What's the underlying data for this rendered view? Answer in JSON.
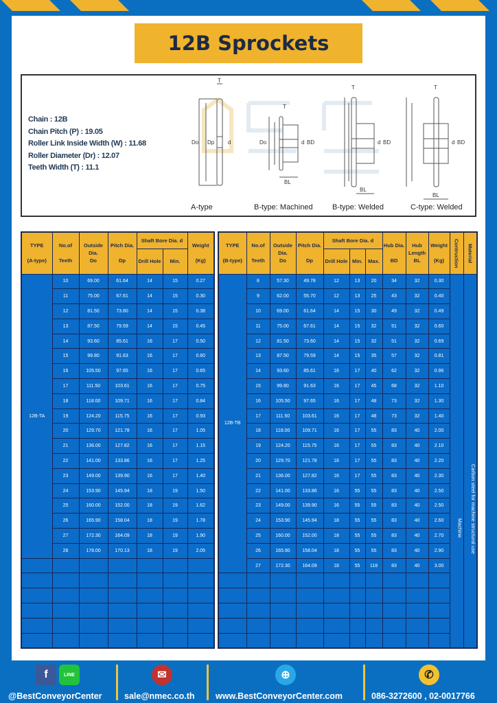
{
  "title": "12B Sprockets",
  "specs": [
    "Chain  :  12B",
    "Chain Pitch (P)  :  19.05",
    "Roller Link Inside Width (W) : 11.68",
    "Roller Diameter (Dr)  : 12.07",
    "Teeth Width (T)  :  11.1"
  ],
  "diagram": {
    "captions": [
      "A-type",
      "B-type: Machined",
      "B-type: Welded",
      "C-type: Welded"
    ],
    "labels": {
      "T": "T",
      "Do": "Do",
      "Dp": "Dp",
      "d": "d",
      "BD": "BD",
      "BL": "BL"
    },
    "watermark": "BEST CONVEYOR CENTER"
  },
  "table_a": {
    "headers": {
      "type": "TYPE",
      "type_sub": "(A-type)",
      "teeth": "No.of",
      "teeth_sub": "Teeth",
      "od": "Outside",
      "od_sub": "Dia.",
      "od_sub2": "Do",
      "pd": "Pitch Dia.",
      "pd_sub": "Dp",
      "bore": "Shaft Bore Dia. d",
      "drill": "Drill Hole",
      "min": "Min.",
      "wt": "Weight",
      "wt_sub": "(Kg)"
    },
    "type_value": "12B-TA",
    "rows": [
      [
        "10",
        "69.00",
        "61.64",
        "14",
        "15",
        "0.27"
      ],
      [
        "11",
        "75.00",
        "67.61",
        "14",
        "15",
        "0.30"
      ],
      [
        "12",
        "81.50",
        "73.60",
        "14",
        "15",
        "0.38"
      ],
      [
        "13",
        "87.50",
        "79.59",
        "14",
        "15",
        "0.45"
      ],
      [
        "14",
        "93.60",
        "85.61",
        "16",
        "17",
        "0.50"
      ],
      [
        "15",
        "99.80",
        "91.63",
        "16",
        "17",
        "0.60"
      ],
      [
        "16",
        "105.50",
        "97.65",
        "16",
        "17",
        "0.65"
      ],
      [
        "17",
        "111.50",
        "103.61",
        "16",
        "17",
        "0.75"
      ],
      [
        "18",
        "118.00",
        "109.71",
        "16",
        "17",
        "0.84"
      ],
      [
        "19",
        "124.20",
        "115.75",
        "16",
        "17",
        "0.93"
      ],
      [
        "20",
        "129.70",
        "121.78",
        "16",
        "17",
        "1.05"
      ],
      [
        "21",
        "136.00",
        "127.82",
        "16",
        "17",
        "1.15"
      ],
      [
        "22",
        "141.00",
        "133.86",
        "16",
        "17",
        "1.25"
      ],
      [
        "23",
        "149.00",
        "139.90",
        "16",
        "17",
        "1.40"
      ],
      [
        "24",
        "153.90",
        "145.94",
        "18",
        "19",
        "1.50"
      ],
      [
        "25",
        "160.00",
        "152.00",
        "18",
        "19",
        "1.62"
      ],
      [
        "26",
        "165.90",
        "158.04",
        "18",
        "19",
        "1.78"
      ],
      [
        "27",
        "172.30",
        "164.09",
        "18",
        "19",
        "1.90"
      ],
      [
        "28",
        "178.00",
        "170.13",
        "18",
        "19",
        "2.05"
      ]
    ]
  },
  "table_b": {
    "headers": {
      "type": "TYPE",
      "type_sub": "(B-type)",
      "teeth": "No.of",
      "teeth_sub": "Teeth",
      "od": "Outside",
      "od_sub": "Dia.",
      "od_sub2": "Do",
      "pd": "Pitch Dia.",
      "pd_sub": "Dp",
      "bore": "Shaft Bore Dia. d",
      "drill": "Drill Hole",
      "min": "Min.",
      "max": "Max.",
      "hub": "Hub Dia.",
      "hub_sub": "BD",
      "hl": "Hub",
      "hl_sub": "Length",
      "hl_sub2": "BL",
      "wt": "Weight",
      "wt_sub": "(Kg)",
      "con": "Contruction",
      "mat": "Material"
    },
    "type_value": "12B-TB",
    "construction": "Machine",
    "material": "Carbon steel for machine structural use",
    "rows": [
      [
        "8",
        "57.30",
        "49.78",
        "12",
        "13",
        "20",
        "34",
        "32",
        "0.30"
      ],
      [
        "9",
        "62.00",
        "55.70",
        "12",
        "13",
        "25",
        "43",
        "32",
        "0.40"
      ],
      [
        "10",
        "69.00",
        "61.64",
        "14",
        "15",
        "30",
        "49",
        "32",
        "0.49"
      ],
      [
        "11",
        "75.00",
        "67.61",
        "14",
        "15",
        "32",
        "51",
        "32",
        "0.60"
      ],
      [
        "12",
        "81.50",
        "73.60",
        "14",
        "15",
        "32",
        "51",
        "32",
        "0.69"
      ],
      [
        "13",
        "87.50",
        "79.59",
        "14",
        "15",
        "35",
        "57",
        "32",
        "0.81"
      ],
      [
        "14",
        "93.60",
        "85.61",
        "16",
        "17",
        "40",
        "62",
        "32",
        "0.96"
      ],
      [
        "15",
        "99.80",
        "91.63",
        "16",
        "17",
        "45",
        "68",
        "32",
        "1.10"
      ],
      [
        "16",
        "105.50",
        "97.65",
        "16",
        "17",
        "48",
        "73",
        "32",
        "1.30"
      ],
      [
        "17",
        "111.50",
        "103.61",
        "16",
        "17",
        "48",
        "73",
        "32",
        "1.40"
      ],
      [
        "18",
        "118.00",
        "109.71",
        "16",
        "17",
        "55",
        "83",
        "40",
        "2.00"
      ],
      [
        "19",
        "124.20",
        "115.75",
        "16",
        "17",
        "55",
        "83",
        "40",
        "2.10"
      ],
      [
        "20",
        "129.70",
        "121.78",
        "16",
        "17",
        "55",
        "83",
        "40",
        "2.20"
      ],
      [
        "21",
        "136.00",
        "127.82",
        "16",
        "17",
        "55",
        "83",
        "40",
        "2.30"
      ],
      [
        "22",
        "141.00",
        "133.86",
        "16",
        "55",
        "55",
        "83",
        "40",
        "2.50"
      ],
      [
        "23",
        "149.00",
        "139.90",
        "16",
        "55",
        "55",
        "83",
        "40",
        "2.50"
      ],
      [
        "24",
        "153.90",
        "145.94",
        "18",
        "55",
        "55",
        "83",
        "40",
        "2.60"
      ],
      [
        "25",
        "160.00",
        "152.00",
        "18",
        "55",
        "55",
        "83",
        "40",
        "2.70"
      ],
      [
        "26",
        "165.90",
        "158.04",
        "18",
        "55",
        "55",
        "83",
        "40",
        "2.90"
      ],
      [
        "27",
        "172.30",
        "164.09",
        "18",
        "55",
        "118",
        "83",
        "40",
        "3.00"
      ]
    ]
  },
  "footer": {
    "social": "@BestConveyorCenter",
    "email": "sale@nmec.co.th",
    "website": "www.BestConveyorCenter.com",
    "phone": "086-3272600 , 02-0017766",
    "line_badge": "LINE"
  },
  "colors": {
    "blue": "#0b6fc1",
    "yellow": "#f0b32e",
    "cell": "#0b6cc9"
  }
}
